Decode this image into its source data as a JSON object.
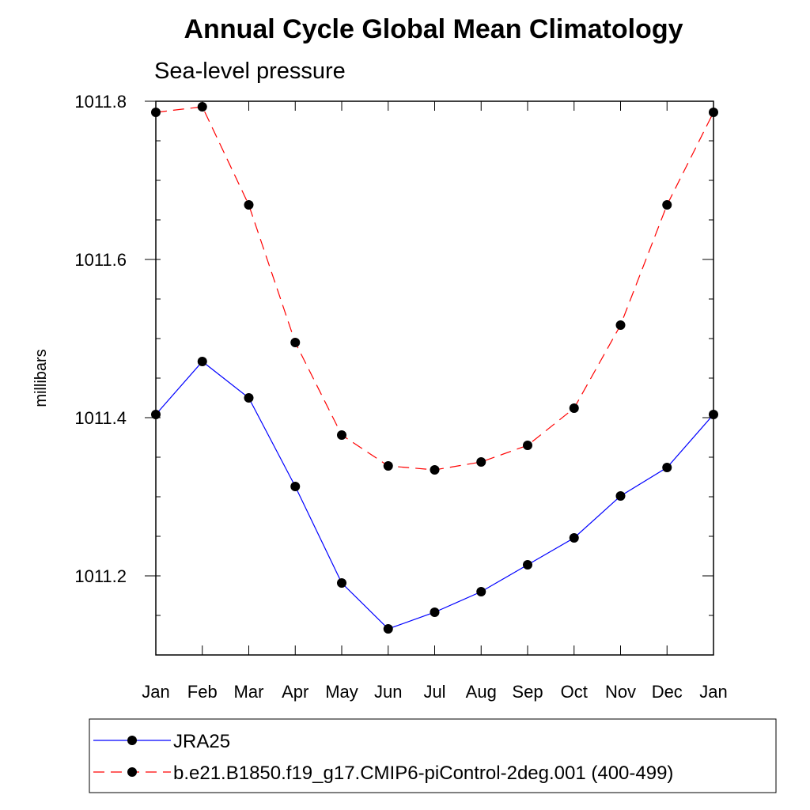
{
  "chart_data": {
    "type": "line",
    "title": "Annual Cycle Global Mean Climatology",
    "subtitle": "Sea-level pressure",
    "xlabel": "",
    "ylabel": "millibars",
    "categories": [
      "Jan",
      "Feb",
      "Mar",
      "Apr",
      "May",
      "Jun",
      "Jul",
      "Aug",
      "Sep",
      "Oct",
      "Nov",
      "Dec",
      "Jan"
    ],
    "ylim": [
      1011.1,
      1011.8
    ],
    "yticks": [
      1011.2,
      1011.4,
      1011.6,
      1011.8
    ],
    "ytick_labels": [
      "1011.2",
      "1011.4",
      "1011.6",
      "1011.8"
    ],
    "series": [
      {
        "name": "JRA25",
        "color": "#0000ff",
        "dash": "solid",
        "marker": "filled-circle",
        "values": [
          1011.404,
          1011.471,
          1011.425,
          1011.313,
          1011.191,
          1011.133,
          1011.154,
          1011.18,
          1011.214,
          1011.248,
          1011.301,
          1011.337,
          1011.404
        ]
      },
      {
        "name": "b.e21.B1850.f19_g17.CMIP6-piControl-2deg.001 (400-499)",
        "color": "#ff0000",
        "dash": "dashed",
        "marker": "filled-circle",
        "values": [
          1011.786,
          1011.793,
          1011.669,
          1011.495,
          1011.378,
          1011.339,
          1011.334,
          1011.344,
          1011.365,
          1011.412,
          1011.517,
          1011.669,
          1011.786
        ]
      }
    ],
    "legend_position": "bottom",
    "grid": false
  }
}
